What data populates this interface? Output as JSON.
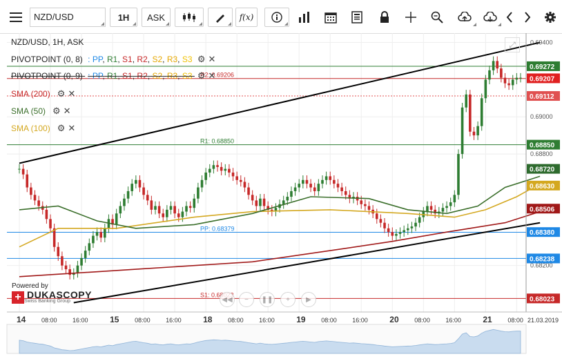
{
  "toolbar": {
    "menu_icon": "hamburger-icon",
    "symbol": "NZD/USD",
    "interval": "1H",
    "side": "ASK",
    "buttons": [
      "candles-icon",
      "draw-icon",
      "fx-icon",
      "info-icon",
      "bar-volume-icon",
      "calendar-icon",
      "news-icon",
      "lock-icon",
      "crosshair-icon",
      "zoom-icon",
      "upload-icon",
      "download-icon",
      "prev-icon",
      "next-icon",
      "gear-icon"
    ],
    "fx_label": "f(x)"
  },
  "legend": {
    "title": "NZD/USD, 1H, ASK",
    "pivot1": {
      "name": "PIVOTPOINT (0, 8)",
      "levels": [
        "PP",
        "R1",
        "S1",
        "R2",
        "S2",
        "R3",
        "S3"
      ]
    },
    "pivot2": {
      "name": "PIVOTPOINT (0, 9)",
      "levels": [
        "PP",
        "R1",
        "S1",
        "R2",
        "S2",
        "R3",
        "S3"
      ]
    },
    "sep": ":",
    "comma": ",",
    "sma200": "SMA (200)",
    "sma50": "SMA (50)",
    "sma100": "SMA (100)"
  },
  "colors": {
    "pp": "#1e88e5",
    "r1": "#2e7d32",
    "s1": "#c62828",
    "r2": "#c62828",
    "s2": "#e6a700",
    "r3": "#e6a700",
    "s3": "#f0c000",
    "sma200": "#a01818",
    "sma50": "#3a6e2a",
    "sma100": "#d4a820",
    "bull": "#2e7d32",
    "bear": "#c62828"
  },
  "chart_data": {
    "type": "candlestick",
    "title": "NZD/USD, 1H, ASK",
    "ylim": [
      0.6795,
      0.6945
    ],
    "y_ticks": [
      0.694,
      0.69,
      0.688,
      0.682
    ],
    "y_tick_labels": [
      "0.69400",
      "0.69000",
      "0.68800",
      "0.68200"
    ],
    "x_tick_labels": [
      {
        "label": "14",
        "day": true,
        "i": 0
      },
      {
        "label": "08:00",
        "i": 8
      },
      {
        "label": "16:00",
        "i": 16
      },
      {
        "label": "15",
        "day": true,
        "i": 24
      },
      {
        "label": "08:00",
        "i": 32
      },
      {
        "label": "16:00",
        "i": 40
      },
      {
        "label": "18",
        "day": true,
        "i": 48
      },
      {
        "label": "08:00",
        "i": 56
      },
      {
        "label": "16:00",
        "i": 64
      },
      {
        "label": "19",
        "day": true,
        "i": 72
      },
      {
        "label": "08:00",
        "i": 80
      },
      {
        "label": "16:00",
        "i": 88
      },
      {
        "label": "20",
        "day": true,
        "i": 96
      },
      {
        "label": "08:00",
        "i": 104
      },
      {
        "label": "16:00",
        "i": 112
      },
      {
        "label": "21",
        "day": true,
        "i": 120
      },
      {
        "label": "08:00",
        "i": 128
      }
    ],
    "date_label": "21.03.2019",
    "closes": [
      0.6872,
      0.6869,
      0.6862,
      0.6858,
      0.6855,
      0.6852,
      0.685,
      0.6845,
      0.684,
      0.683,
      0.6825,
      0.682,
      0.6818,
      0.6815,
      0.6816,
      0.682,
      0.6824,
      0.6828,
      0.6832,
      0.6836,
      0.6838,
      0.6835,
      0.684,
      0.6845,
      0.6842,
      0.6848,
      0.6852,
      0.6856,
      0.686,
      0.6864,
      0.6866,
      0.6862,
      0.6858,
      0.6855,
      0.685,
      0.6852,
      0.6848,
      0.6846,
      0.685,
      0.6852,
      0.6848,
      0.6846,
      0.6849,
      0.6852,
      0.6851,
      0.6856,
      0.6862,
      0.6866,
      0.687,
      0.6872,
      0.6874,
      0.6873,
      0.6871,
      0.6872,
      0.687,
      0.6868,
      0.6866,
      0.6865,
      0.6862,
      0.6858,
      0.6855,
      0.6852,
      0.6856,
      0.6852,
      0.685,
      0.6849,
      0.6851,
      0.6853,
      0.6855,
      0.6857,
      0.686,
      0.6862,
      0.6864,
      0.6866,
      0.6864,
      0.6862,
      0.686,
      0.6864,
      0.6866,
      0.6868,
      0.6866,
      0.6864,
      0.6862,
      0.686,
      0.6858,
      0.6856,
      0.6857,
      0.6855,
      0.6853,
      0.6852,
      0.685,
      0.6848,
      0.6845,
      0.6843,
      0.684,
      0.6838,
      0.6836,
      0.6837,
      0.6838,
      0.6839,
      0.684,
      0.6841,
      0.6843,
      0.6846,
      0.6849,
      0.6852,
      0.685,
      0.6848,
      0.6849,
      0.6851,
      0.6852,
      0.6854,
      0.6858,
      0.688,
      0.6905,
      0.6912,
      0.6892,
      0.689,
      0.6895,
      0.691,
      0.692,
      0.6925,
      0.693,
      0.6926,
      0.6921,
      0.6918,
      0.6917,
      0.692,
      0.6921,
      0.6921
    ],
    "sma200": [
      [
        0,
        0.6814
      ],
      [
        30,
        0.6818
      ],
      [
        60,
        0.6822
      ],
      [
        80,
        0.6828
      ],
      [
        96,
        0.6833
      ],
      [
        110,
        0.6838
      ],
      [
        125,
        0.6843
      ],
      [
        134,
        0.6849
      ]
    ],
    "sma50": [
      [
        0,
        0.685
      ],
      [
        10,
        0.6852
      ],
      [
        20,
        0.6844
      ],
      [
        30,
        0.684
      ],
      [
        45,
        0.6842
      ],
      [
        60,
        0.6848
      ],
      [
        75,
        0.6857
      ],
      [
        90,
        0.6856
      ],
      [
        100,
        0.685
      ],
      [
        110,
        0.6848
      ],
      [
        118,
        0.6852
      ],
      [
        125,
        0.6862
      ],
      [
        134,
        0.6868
      ]
    ],
    "sma100": [
      [
        0,
        0.683
      ],
      [
        10,
        0.684
      ],
      [
        25,
        0.684
      ],
      [
        45,
        0.6846
      ],
      [
        60,
        0.6849
      ],
      [
        80,
        0.685
      ],
      [
        100,
        0.6848
      ],
      [
        112,
        0.6846
      ],
      [
        120,
        0.685
      ],
      [
        128,
        0.6857
      ],
      [
        134,
        0.6864
      ]
    ],
    "trend_upper": [
      [
        0,
        0.6875
      ],
      [
        134,
        0.694
      ]
    ],
    "trend_lower": [
      [
        14,
        0.68
      ],
      [
        134,
        0.6843
      ]
    ],
    "pivot_levels": [
      {
        "name": "R2",
        "value": 0.69206,
        "label": "R2: 0.69206",
        "color": "#c62828"
      },
      {
        "name": "R1",
        "value": 0.6885,
        "label": "R1: 0.68850",
        "color": "#2e7d32"
      },
      {
        "name": "PP",
        "value": 0.68379,
        "label": "PP: 0.68379",
        "color": "#1e88e5"
      },
      {
        "name": "S1",
        "value": 0.68023,
        "label": "S1: 0.68023",
        "color": "#c62828"
      }
    ],
    "price_tags": [
      {
        "value": 0.69272,
        "label": "0.69272",
        "color": "#2e7d32"
      },
      {
        "value": 0.69207,
        "label": "0.69207",
        "color": "#e02020"
      },
      {
        "value": 0.69112,
        "label": "0.69112",
        "color": "#e05050"
      },
      {
        "value": 0.6885,
        "label": "0.68850",
        "color": "#2e7d32"
      },
      {
        "value": 0.6872,
        "label": "0.68720",
        "color": "#2e6b2e"
      },
      {
        "value": 0.6863,
        "label": "0.68630",
        "color": "#d4a820"
      },
      {
        "value": 0.68506,
        "label": "0.68506",
        "color": "#a01818"
      },
      {
        "value": 0.6838,
        "label": "0.68380",
        "color": "#1e88e5"
      },
      {
        "value": 0.68238,
        "label": "0.68238",
        "color": "#1e88e5"
      },
      {
        "value": 0.68023,
        "label": "0.68023",
        "color": "#c62828"
      }
    ],
    "current_ask": 0.69112,
    "grid": true
  },
  "branding": {
    "powered": "Powered by",
    "name": "DUKASCOPY",
    "sub": "Swiss Banking Group"
  }
}
